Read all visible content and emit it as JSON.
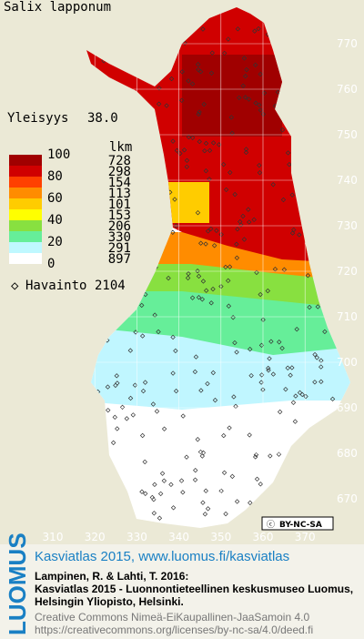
{
  "title": "Salix lapponum",
  "frequency": {
    "label": "Yleisyys",
    "value": "38.0"
  },
  "legend": {
    "scale_labels": [
      100,
      80,
      60,
      40,
      20,
      0
    ],
    "count_header": "lkm",
    "classes": [
      {
        "color": "#a00000",
        "count": 728
      },
      {
        "color": "#d00000",
        "count": 298
      },
      {
        "color": "#ff4000",
        "count": 154
      },
      {
        "color": "#ff8c00",
        "count": 113
      },
      {
        "color": "#ffcc00",
        "count": 101
      },
      {
        "color": "#ffff00",
        "count": 153
      },
      {
        "color": "#88e040",
        "count": 206
      },
      {
        "color": "#66ee99",
        "count": 330
      },
      {
        "color": "#bff8ff",
        "count": 291
      },
      {
        "color": "#ffffff",
        "count": 897
      }
    ]
  },
  "observations": {
    "label": "Havainto",
    "value": 2104
  },
  "map": {
    "yticks": [
      770,
      760,
      750,
      740,
      730,
      720,
      710,
      700,
      690,
      680,
      670
    ],
    "xticks": [
      310,
      320,
      330,
      340,
      350,
      360,
      370
    ]
  },
  "license_badge": "BY-NC-SA",
  "footer": {
    "brand": "LUOMUS",
    "link": "Kasviatlas 2015, www.luomus.fi/kasviatlas",
    "citation": [
      "Lampinen, R. & Lahti, T. 2016:",
      "Kasviatlas 2015 - Luonnontieteellinen keskusmuseo Luomus,",
      "Helsingin Yliopisto, Helsinki."
    ],
    "license": [
      "Creative Commons Nimeä-EiKaupallinen-JaaSamoin 4.0",
      "https://creativecommons.org/licenses/by-nc-sa/4.0/deed.fi"
    ]
  }
}
